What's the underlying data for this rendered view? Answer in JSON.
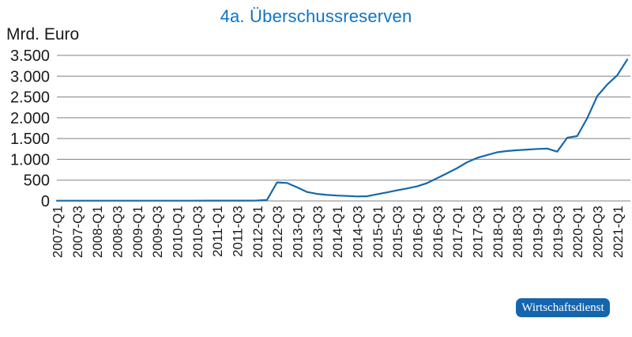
{
  "header": {
    "title": "4a. Überschussreserven"
  },
  "footer": {
    "brand_label": "Wirtschaftsdienst",
    "brand_bg": "#1565ae",
    "brand_text_color": "#ffffff"
  },
  "chart_data": {
    "type": "line",
    "title": "4a. Überschussreserven",
    "title_color": "#0d74c8",
    "ylabel": "Mrd. Euro",
    "xlabel": "",
    "ylim": [
      0,
      3500
    ],
    "grid": true,
    "legend": "none",
    "text_color": "#1a1a1a",
    "grid_color": "#808080",
    "x_tick_every": 2,
    "y_ticks": [
      {
        "value": 0,
        "label": "0"
      },
      {
        "value": 500,
        "label": "500"
      },
      {
        "value": 1000,
        "label": "1.000"
      },
      {
        "value": 1500,
        "label": "1.500"
      },
      {
        "value": 2000,
        "label": "2.000"
      },
      {
        "value": 2500,
        "label": "2.500"
      },
      {
        "value": 3000,
        "label": "3.000"
      },
      {
        "value": 3500,
        "label": "3.500"
      }
    ],
    "x": [
      "2007-Q1",
      "2007-Q2",
      "2007-Q3",
      "2007-Q4",
      "2008-Q1",
      "2008-Q2",
      "2008-Q3",
      "2008-Q4",
      "2009-Q1",
      "2009-Q2",
      "2009-Q3",
      "2009-Q4",
      "2010-Q1",
      "2010-Q2",
      "2010-Q3",
      "2010-Q4",
      "2011-Q1",
      "2011-Q2",
      "2011-Q3",
      "2011-Q4",
      "2012-Q1",
      "2012-Q2",
      "2012-Q3",
      "2012-Q4",
      "2013-Q1",
      "2013-Q2",
      "2013-Q3",
      "2013-Q4",
      "2014-Q1",
      "2014-Q2",
      "2014-Q3",
      "2014-Q4",
      "2015-Q1",
      "2015-Q2",
      "2015-Q3",
      "2015-Q4",
      "2016-Q1",
      "2016-Q2",
      "2016-Q3",
      "2016-Q4",
      "2017-Q1",
      "2017-Q2",
      "2017-Q3",
      "2017-Q4",
      "2018-Q1",
      "2018-Q2",
      "2018-Q3",
      "2018-Q4",
      "2019-Q1",
      "2019-Q2",
      "2019-Q3",
      "2019-Q4",
      "2020-Q1",
      "2020-Q2",
      "2020-Q3",
      "2020-Q4",
      "2021-Q1",
      "2021-Q2"
    ],
    "series": [
      {
        "name": "Überschussreserven",
        "color": "#1568ac",
        "values": [
          5,
          5,
          5,
          5,
          5,
          5,
          5,
          6,
          6,
          6,
          6,
          6,
          6,
          6,
          6,
          7,
          7,
          7,
          7,
          8,
          10,
          25,
          445,
          432,
          330,
          215,
          170,
          145,
          130,
          120,
          108,
          112,
          160,
          205,
          255,
          300,
          350,
          430,
          545,
          665,
          790,
          930,
          1035,
          1105,
          1170,
          1200,
          1220,
          1235,
          1250,
          1260,
          1185,
          1520,
          1560,
          1990,
          2520,
          2800,
          3020,
          3400
        ]
      }
    ]
  }
}
